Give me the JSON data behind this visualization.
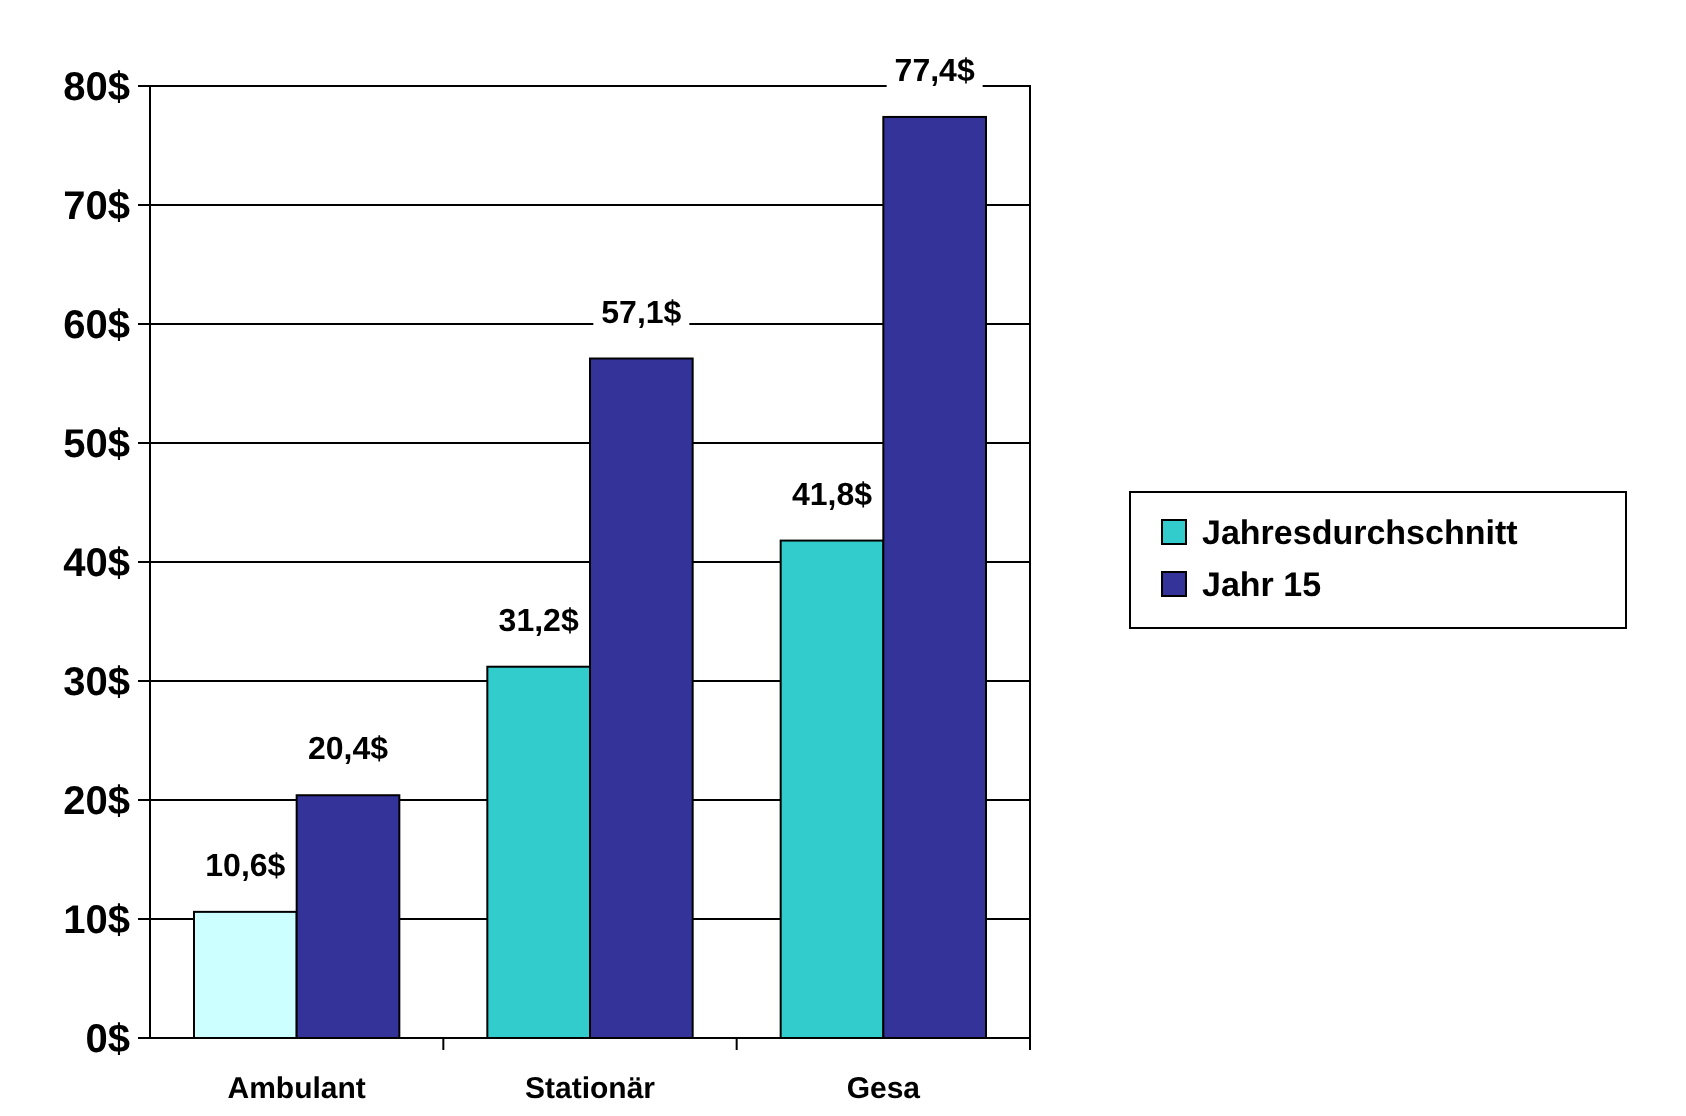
{
  "chart_data": {
    "type": "bar",
    "categories": [
      "Ambulant",
      "Stationär",
      "Gesa"
    ],
    "series": [
      {
        "name": "Jahresdurchschnitt",
        "color": "#33cccc",
        "colors": [
          "#ccffff",
          "#33cccc",
          "#33cccc"
        ],
        "values": [
          10.6,
          31.2,
          41.8
        ],
        "value_labels": [
          "10,6$",
          "31,2$",
          "41,8$"
        ]
      },
      {
        "name": "Jahr 15",
        "color": "#333399",
        "values": [
          20.4,
          57.1,
          77.4
        ],
        "value_labels": [
          "20,4$",
          "57,1$",
          "77,4$"
        ]
      }
    ],
    "ylim": [
      0,
      80
    ],
    "yticks": [
      {
        "value": 0,
        "label": "0$"
      },
      {
        "value": 10,
        "label": "10$"
      },
      {
        "value": 20,
        "label": "20$"
      },
      {
        "value": 30,
        "label": "30$"
      },
      {
        "value": 40,
        "label": "40$"
      },
      {
        "value": 50,
        "label": "50$"
      },
      {
        "value": 60,
        "label": "60$"
      },
      {
        "value": 70,
        "label": "70$"
      },
      {
        "value": 80,
        "label": "80$"
      }
    ],
    "grid": "y",
    "legend": "right"
  }
}
